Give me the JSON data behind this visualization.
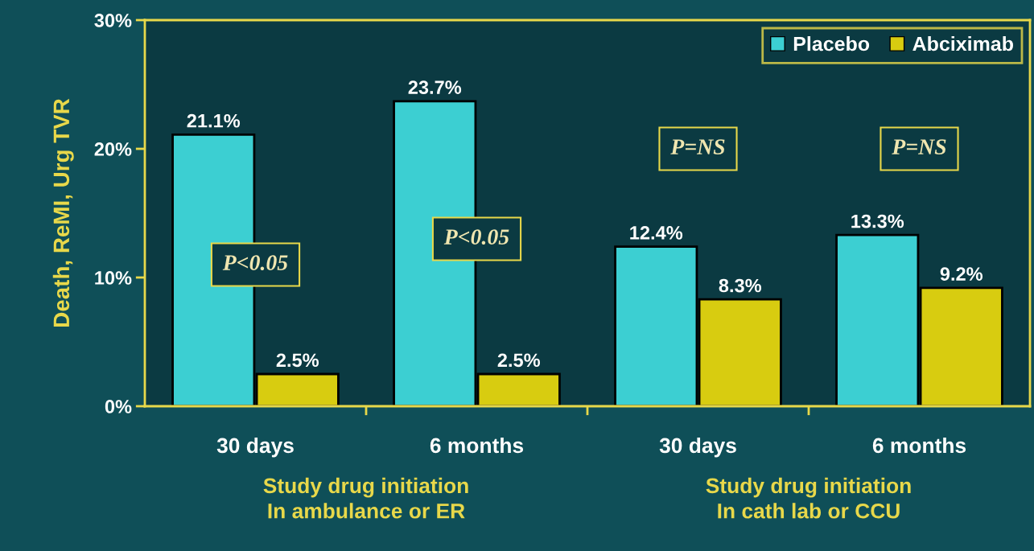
{
  "chart_data": {
    "type": "bar",
    "ylabel": "Death, ReMI, Urg TVR",
    "categories": [
      "30 days",
      "6 months",
      "30 days",
      "6 months"
    ],
    "series": [
      {
        "name": "Placebo",
        "color": "#3ccfd2",
        "values": [
          21.1,
          23.7,
          12.4,
          13.3
        ],
        "value_labels": [
          "21.1%",
          "23.7%",
          "12.4%",
          "13.3%"
        ]
      },
      {
        "name": "Abciximab",
        "color": "#d8cc10",
        "values": [
          2.5,
          2.5,
          8.3,
          9.2
        ],
        "value_labels": [
          "2.5%",
          "2.5%",
          "8.3%",
          "9.2%"
        ]
      }
    ],
    "ylim": [
      0,
      30
    ],
    "yticks": [
      {
        "value": 0,
        "label": "0%"
      },
      {
        "value": 10,
        "label": "10%"
      },
      {
        "value": 20,
        "label": "20%"
      },
      {
        "value": 30,
        "label": "30%"
      }
    ],
    "grid": false,
    "legend": "top right",
    "annotations": [
      "P<0.05",
      "P<0.05",
      "P=NS",
      "P=NS",
      "Study drug initiation\nIn ambulance or ER",
      "Study drug initiation\nIn cath lab or CCU"
    ]
  }
}
